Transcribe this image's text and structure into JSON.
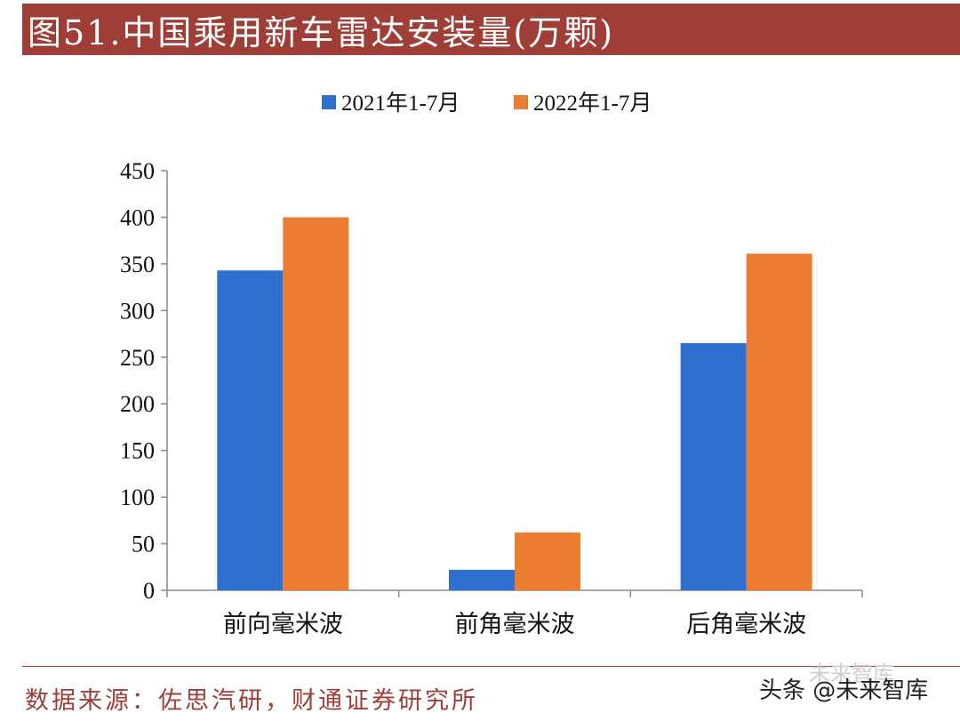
{
  "header": {
    "title": "图51.中国乘用新车雷达安装量(万颗)"
  },
  "chart_data": {
    "type": "bar",
    "categories": [
      "前向毫米波",
      "前角毫米波",
      "后角毫米波"
    ],
    "series": [
      {
        "name": "2021年1-7月",
        "values": [
          343,
          22,
          265
        ],
        "color": "#2e6fcf"
      },
      {
        "name": "2022年1-7月",
        "values": [
          400,
          62,
          361
        ],
        "color": "#ec7c30"
      }
    ],
    "yticks": [
      "0",
      "50",
      "100",
      "150",
      "200",
      "250",
      "300",
      "350",
      "400",
      "450"
    ],
    "ylim": [
      0,
      450
    ],
    "legend_position": "top-center",
    "grid": false
  },
  "footer": {
    "source": "数据来源：佐思汽研，财通证券研究所",
    "watermark": "头条 @未来智库",
    "watermark_faint": "未来智库"
  }
}
